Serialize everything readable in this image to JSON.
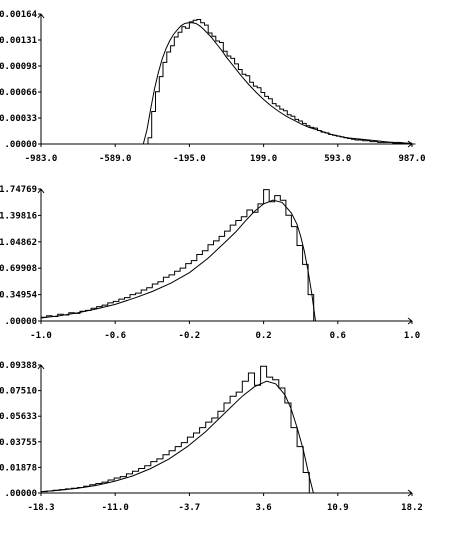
{
  "chart_data": [
    {
      "type": "line",
      "title": "",
      "xlabel": "",
      "ylabel": "",
      "xlim": [
        -983.0,
        987.0
      ],
      "ylim": [
        0.0,
        0.00164
      ],
      "x_ticks": [
        "-983.0",
        "-589.0",
        "-195.0",
        "199.0",
        "593.0",
        "987.0"
      ],
      "y_ticks": [
        ".00000",
        "0.00033",
        "0.00066",
        "0.00098",
        "0.00131",
        "0.00164"
      ],
      "grid": false,
      "series": [
        {
          "style": "step-histogram",
          "x": [
            -415,
            -395,
            -375,
            -355,
            -335,
            -315,
            -295,
            -275,
            -255,
            -235,
            -215,
            -195,
            -175,
            -155,
            -135,
            -115,
            -95,
            -75,
            -55,
            -35,
            -15,
            5,
            25,
            45,
            65,
            85,
            105,
            125,
            145,
            165,
            185,
            205,
            225,
            245,
            265,
            285,
            305,
            325,
            345,
            365,
            385,
            405,
            425,
            445,
            465,
            485,
            505,
            525,
            545,
            565,
            585,
            605,
            625,
            645,
            665,
            685,
            705,
            725,
            745,
            765,
            785,
            805,
            825,
            845,
            865,
            885,
            905,
            925,
            945,
            965,
            985
          ],
          "y": [
            8e-05,
            0.00041,
            0.00066,
            0.00085,
            0.00103,
            0.00116,
            0.00124,
            0.00135,
            0.00141,
            0.00148,
            0.00146,
            0.00154,
            0.00156,
            0.00157,
            0.00153,
            0.0015,
            0.0014,
            0.00136,
            0.0013,
            0.00128,
            0.00117,
            0.00111,
            0.00108,
            0.00101,
            0.00094,
            0.00088,
            0.00086,
            0.00078,
            0.00073,
            0.00071,
            0.00065,
            0.0006,
            0.00057,
            0.00051,
            0.00048,
            0.00044,
            0.00042,
            0.00037,
            0.00035,
            0.00031,
            0.00029,
            0.00026,
            0.00023,
            0.00021,
            0.0002,
            0.00017,
            0.00015,
            0.00014,
            0.00012,
            0.00011,
            0.0001,
            9e-05,
            8e-05,
            7e-05,
            6e-05,
            5e-05,
            5e-05,
            4e-05,
            4e-05,
            3e-05,
            3e-05,
            2e-05,
            2e-05,
            2e-05,
            2e-05,
            1e-05,
            1e-05,
            1e-05,
            1e-05,
            1e-05,
            0.0
          ]
        },
        {
          "style": "smooth-curve",
          "x": [
            -440,
            -420,
            -400,
            -380,
            -360,
            -340,
            -320,
            -300,
            -280,
            -260,
            -240,
            -220,
            -200,
            -180,
            -160,
            -140,
            -120,
            -100,
            -80,
            -60,
            -40,
            -20,
            0,
            40,
            80,
            120,
            160,
            200,
            240,
            280,
            320,
            360,
            400,
            440,
            480,
            520,
            560,
            600,
            640,
            680,
            720,
            760,
            800,
            840,
            880,
            920,
            960,
            987
          ],
          "y": [
            0.0,
            0.00018,
            0.00045,
            0.0007,
            0.0009,
            0.00107,
            0.0012,
            0.0013,
            0.00138,
            0.00144,
            0.00149,
            0.00152,
            0.00153,
            0.00153,
            0.00152,
            0.00149,
            0.00145,
            0.0014,
            0.00135,
            0.00129,
            0.00123,
            0.00117,
            0.0011,
            0.00098,
            0.00086,
            0.00075,
            0.00065,
            0.00056,
            0.00048,
            0.00041,
            0.00035,
            0.0003,
            0.00025,
            0.00021,
            0.00018,
            0.00015,
            0.00012,
            0.0001,
            8e-05,
            7e-05,
            6e-05,
            5e-05,
            4e-05,
            3e-05,
            2e-05,
            2e-05,
            1e-05,
            1e-05
          ]
        }
      ]
    },
    {
      "type": "line",
      "title": "",
      "xlabel": "",
      "ylabel": "",
      "xlim": [
        -1.0,
        1.0
      ],
      "ylim": [
        0.0,
        1.74769
      ],
      "x_ticks": [
        "-1.0",
        "-0.6",
        "-0.2",
        "0.2",
        "0.6",
        "1.0"
      ],
      "y_ticks": [
        ".00000",
        "0.34954",
        "0.69908",
        "1.04862",
        "1.39816",
        "1.74769"
      ],
      "grid": false,
      "series": [
        {
          "style": "step-histogram",
          "x": [
            -1.0,
            -0.97,
            -0.94,
            -0.91,
            -0.88,
            -0.85,
            -0.82,
            -0.79,
            -0.76,
            -0.73,
            -0.7,
            -0.67,
            -0.64,
            -0.61,
            -0.58,
            -0.55,
            -0.52,
            -0.49,
            -0.46,
            -0.43,
            -0.4,
            -0.37,
            -0.34,
            -0.31,
            -0.28,
            -0.25,
            -0.22,
            -0.19,
            -0.16,
            -0.13,
            -0.1,
            -0.07,
            -0.04,
            -0.01,
            0.02,
            0.05,
            0.08,
            0.11,
            0.14,
            0.17,
            0.2,
            0.23,
            0.26,
            0.29,
            0.32,
            0.35,
            0.38,
            0.41,
            0.44,
            0.47
          ],
          "y": [
            0.05,
            0.07,
            0.06,
            0.09,
            0.08,
            0.11,
            0.1,
            0.13,
            0.14,
            0.17,
            0.19,
            0.21,
            0.24,
            0.26,
            0.29,
            0.31,
            0.35,
            0.37,
            0.41,
            0.44,
            0.49,
            0.52,
            0.58,
            0.61,
            0.66,
            0.7,
            0.76,
            0.8,
            0.88,
            0.93,
            1.01,
            1.06,
            1.12,
            1.19,
            1.27,
            1.33,
            1.38,
            1.47,
            1.44,
            1.55,
            1.74,
            1.58,
            1.66,
            1.6,
            1.4,
            1.25,
            1.0,
            0.75,
            0.35,
            0.0
          ]
        },
        {
          "style": "smooth-curve",
          "x": [
            -1.0,
            -0.9,
            -0.8,
            -0.7,
            -0.6,
            -0.5,
            -0.4,
            -0.3,
            -0.2,
            -0.1,
            0.0,
            0.05,
            0.1,
            0.15,
            0.2,
            0.25,
            0.3,
            0.35,
            0.38,
            0.4,
            0.42,
            0.44,
            0.46,
            0.48
          ],
          "y": [
            0.04,
            0.07,
            0.11,
            0.16,
            0.22,
            0.3,
            0.39,
            0.5,
            0.64,
            0.83,
            1.06,
            1.18,
            1.32,
            1.45,
            1.55,
            1.6,
            1.57,
            1.43,
            1.28,
            1.12,
            0.92,
            0.66,
            0.36,
            0.0
          ]
        }
      ]
    },
    {
      "type": "line",
      "title": "",
      "xlabel": "",
      "ylabel": "",
      "xlim": [
        -18.3,
        18.2
      ],
      "ylim": [
        0.0,
        0.09388
      ],
      "x_ticks": [
        "-18.3",
        "-11.0",
        "-3.7",
        "3.6",
        "10.9",
        "18.2"
      ],
      "y_ticks": [
        ".00000",
        "0.01878",
        "0.03755",
        "0.05633",
        "0.07510",
        "0.09388"
      ],
      "grid": false,
      "series": [
        {
          "style": "step-histogram",
          "x": [
            -18.3,
            -17.7,
            -17.1,
            -16.5,
            -15.9,
            -15.3,
            -14.7,
            -14.1,
            -13.5,
            -12.9,
            -12.3,
            -11.7,
            -11.1,
            -10.5,
            -9.9,
            -9.3,
            -8.7,
            -8.1,
            -7.5,
            -6.9,
            -6.3,
            -5.7,
            -5.1,
            -4.5,
            -3.9,
            -3.3,
            -2.7,
            -2.1,
            -1.5,
            -0.9,
            -0.3,
            0.3,
            0.9,
            1.5,
            2.1,
            2.7,
            3.3,
            3.9,
            4.5,
            5.1,
            5.7,
            6.3,
            6.9,
            7.5,
            8.1
          ],
          "y": [
            0.001,
            0.0015,
            0.002,
            0.0025,
            0.003,
            0.0035,
            0.004,
            0.005,
            0.006,
            0.007,
            0.008,
            0.0095,
            0.011,
            0.012,
            0.014,
            0.016,
            0.018,
            0.02,
            0.023,
            0.025,
            0.028,
            0.031,
            0.034,
            0.037,
            0.041,
            0.044,
            0.048,
            0.052,
            0.055,
            0.06,
            0.066,
            0.071,
            0.074,
            0.082,
            0.088,
            0.079,
            0.093,
            0.085,
            0.083,
            0.077,
            0.066,
            0.048,
            0.034,
            0.015,
            0.0
          ]
        },
        {
          "style": "smooth-curve",
          "x": [
            -18.3,
            -16.5,
            -14.7,
            -12.9,
            -11.1,
            -9.3,
            -7.5,
            -5.7,
            -3.9,
            -2.1,
            -0.3,
            1.5,
            2.7,
            3.9,
            4.8,
            5.7,
            6.3,
            6.9,
            7.5,
            8.1,
            8.5
          ],
          "y": [
            0.001,
            0.002,
            0.0035,
            0.0055,
            0.0085,
            0.0125,
            0.018,
            0.025,
            0.034,
            0.045,
            0.058,
            0.071,
            0.078,
            0.082,
            0.08,
            0.072,
            0.062,
            0.048,
            0.032,
            0.012,
            0.0
          ]
        }
      ]
    }
  ]
}
